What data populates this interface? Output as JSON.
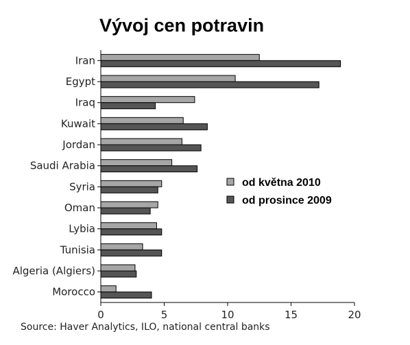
{
  "chart_data": {
    "type": "bar",
    "orientation": "horizontal",
    "title": "Vývoj cen potravin",
    "source": "Source: Haver Analytics, ILO, national central banks",
    "categories": [
      "Iran",
      "Egypt",
      "Iraq",
      "Kuwait",
      "Jordan",
      "Saudi Arabia",
      "Syria",
      "Oman",
      "Lybia",
      "Tunisia",
      "Algeria (Algiers)",
      "Morocco"
    ],
    "series": [
      {
        "name": "od května 2010",
        "color": "#a6a6a6",
        "values": [
          12.5,
          10.6,
          7.4,
          6.5,
          6.4,
          5.6,
          4.8,
          4.5,
          4.4,
          3.3,
          2.7,
          1.2
        ]
      },
      {
        "name": "od prosince 2009",
        "color": "#555555",
        "values": [
          18.9,
          17.2,
          4.3,
          8.4,
          7.9,
          7.6,
          4.5,
          3.9,
          4.8,
          4.8,
          2.8,
          4.0
        ]
      }
    ],
    "xlim": [
      0,
      20
    ],
    "xticks": [
      0,
      5,
      10,
      15,
      20
    ],
    "legend_position": "right-center",
    "grid": false
  }
}
